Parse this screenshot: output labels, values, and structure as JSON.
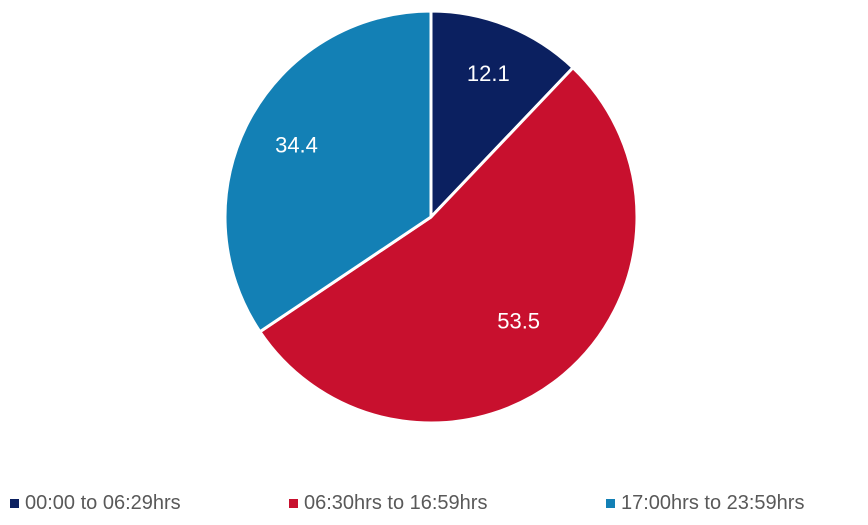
{
  "chart_data": {
    "type": "pie",
    "title": "",
    "categories": [
      "00:00 to 06:29hrs",
      "06:30hrs to 16:59hrs",
      "17:00hrs to 23:59hrs"
    ],
    "values": [
      12.1,
      53.5,
      34.4
    ],
    "data_labels": [
      "12.1",
      "53.5",
      "34.4"
    ],
    "colors": [
      "#0b2060",
      "#c8102e",
      "#1380b5"
    ],
    "start_angle": "12 o'clock",
    "direction": "clockwise",
    "legend": "bottom"
  }
}
